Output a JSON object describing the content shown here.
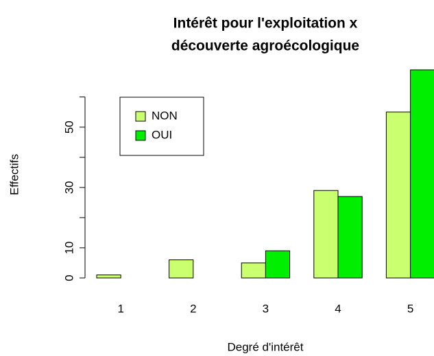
{
  "chart_data": {
    "type": "bar",
    "title": [
      "Intérêt pour l'exploitation x",
      "découverte agroécologique"
    ],
    "x_label": "Degré d'intérêt",
    "y_label": "Effectifs",
    "categories": [
      "1",
      "2",
      "3",
      "4",
      "5"
    ],
    "series": [
      {
        "name": "NON",
        "color": "#caff70",
        "values": [
          1,
          6,
          5,
          29,
          55
        ]
      },
      {
        "name": "OUI",
        "color": "#00ee00",
        "values": [
          0,
          0,
          9,
          27,
          69
        ]
      }
    ],
    "ylim": [
      0,
      69
    ],
    "yticks": [
      0,
      10,
      30,
      50
    ],
    "yticks_unlabeled": [
      20,
      40,
      60
    ],
    "legend": "top-left"
  }
}
